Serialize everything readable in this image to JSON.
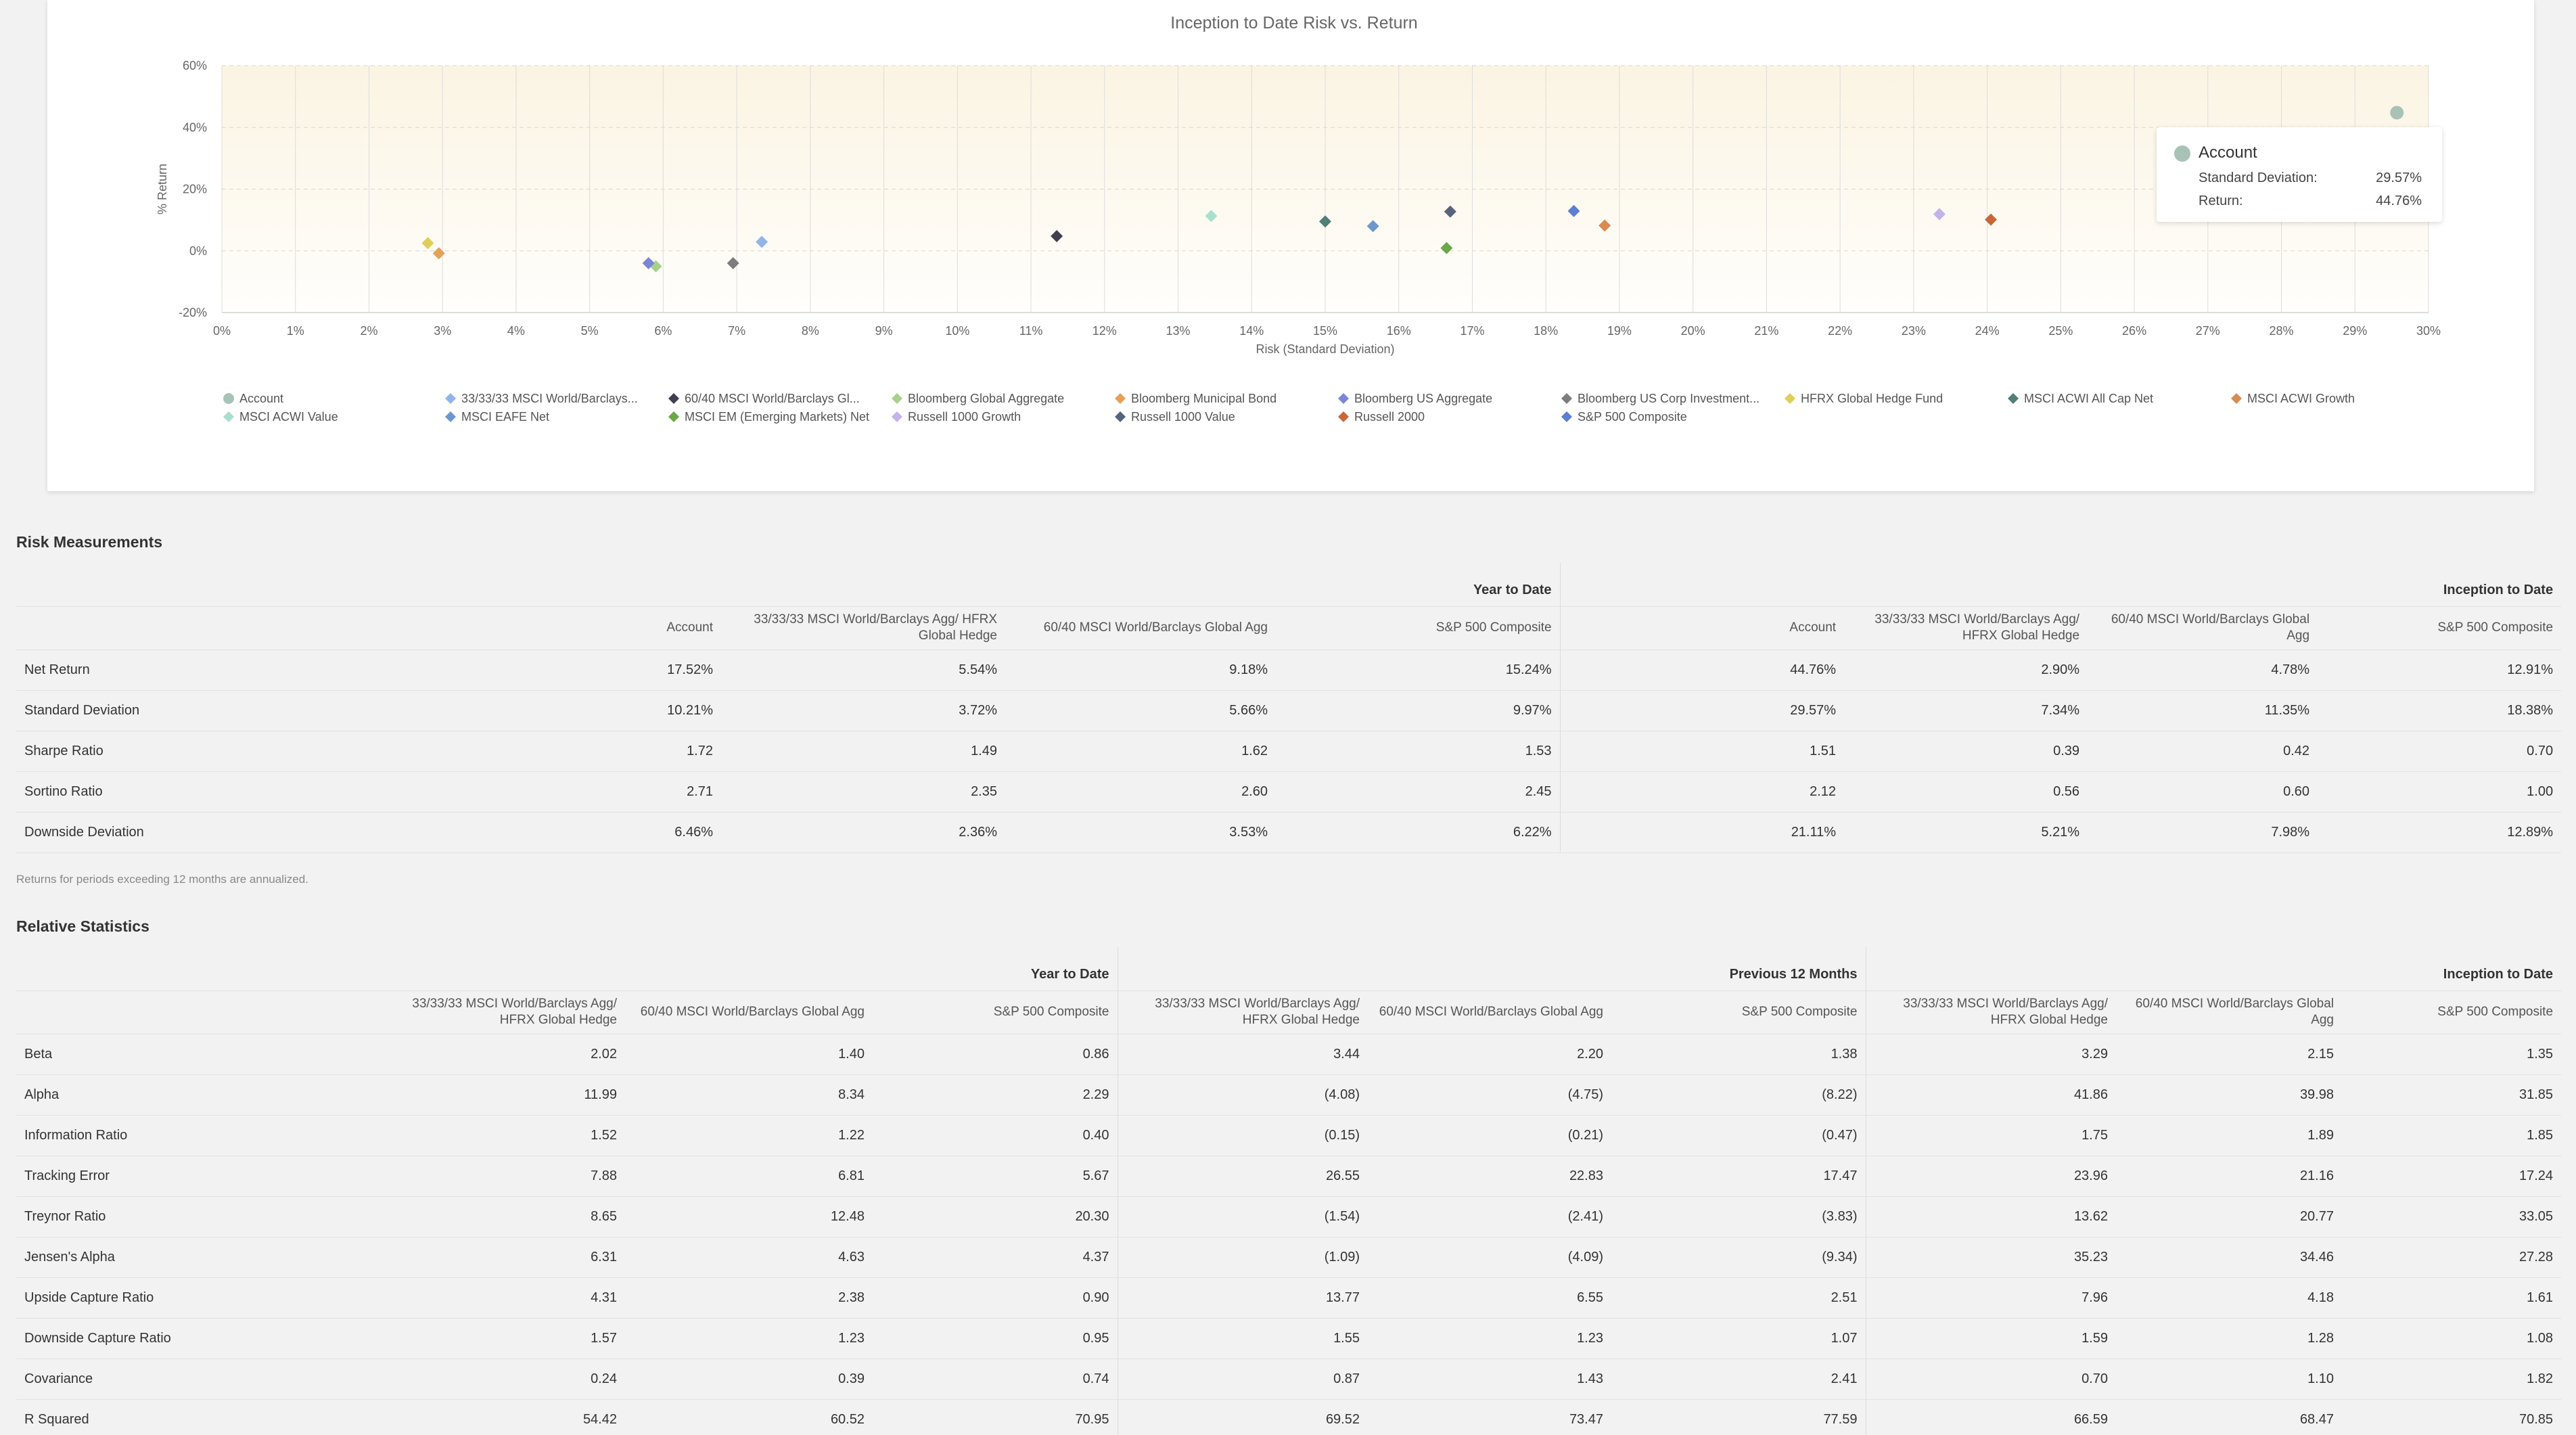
{
  "chart_data": {
    "type": "scatter",
    "title": "Inception to Date Risk vs. Return",
    "xlabel": "Risk (Standard Deviation)",
    "ylabel": "% Return",
    "xlim": [
      0,
      30
    ],
    "ylim": [
      -20,
      60
    ],
    "x_ticks": [
      "0%",
      "1%",
      "2%",
      "3%",
      "4%",
      "5%",
      "6%",
      "7%",
      "8%",
      "9%",
      "10%",
      "11%",
      "12%",
      "13%",
      "14%",
      "15%",
      "16%",
      "17%",
      "18%",
      "19%",
      "20%",
      "21%",
      "22%",
      "23%",
      "24%",
      "25%",
      "26%",
      "27%",
      "28%",
      "29%",
      "30%"
    ],
    "y_ticks": [
      "60%",
      "40%",
      "20%",
      "0%",
      "-20%"
    ],
    "grid": true,
    "legend_position": "bottom",
    "series": [
      {
        "name": "Account",
        "marker": "circle",
        "color": "#a9c2b6",
        "x": 29.57,
        "y": 44.76
      },
      {
        "name": "33/33/33 MSCI World/Barclays...",
        "marker": "diamond",
        "color": "#92b4e8",
        "x": 7.34,
        "y": 2.9
      },
      {
        "name": "60/40 MSCI World/Barclays Gl...",
        "marker": "diamond",
        "color": "#3f3f4f",
        "x": 11.35,
        "y": 4.78
      },
      {
        "name": "Bloomberg Global Aggregate",
        "marker": "diamond",
        "color": "#a8d08d",
        "x": 5.9,
        "y": -5.0
      },
      {
        "name": "Bloomberg Municipal Bond",
        "marker": "diamond",
        "color": "#e3a25a",
        "x": 2.95,
        "y": -0.8
      },
      {
        "name": "Bloomberg US Aggregate",
        "marker": "diamond",
        "color": "#7a86d6",
        "x": 5.8,
        "y": -4.0
      },
      {
        "name": "Bloomberg US Corp Investment...",
        "marker": "diamond",
        "color": "#7c7c7c",
        "x": 6.95,
        "y": -4.0
      },
      {
        "name": "HFRX Global Hedge Fund",
        "marker": "diamond",
        "color": "#e0cf55",
        "x": 2.8,
        "y": 2.5
      },
      {
        "name": "MSCI ACWI All Cap Net",
        "marker": "diamond",
        "color": "#4e7f78",
        "x": 15.0,
        "y": 9.5
      },
      {
        "name": "MSCI ACWI Growth",
        "marker": "diamond",
        "color": "#d98b52",
        "x": 18.8,
        "y": 8.2
      },
      {
        "name": "MSCI ACWI Value",
        "marker": "diamond",
        "color": "#a8e0cc",
        "x": 13.45,
        "y": 11.3
      },
      {
        "name": "MSCI EAFE Net",
        "marker": "diamond",
        "color": "#6f97cf",
        "x": 15.65,
        "y": 8.0
      },
      {
        "name": "MSCI EM (Emerging Markets) Net",
        "marker": "diamond",
        "color": "#6aa847",
        "x": 16.65,
        "y": 0.9
      },
      {
        "name": "Russell 1000 Growth",
        "marker": "diamond",
        "color": "#c3b3e8",
        "x": 23.35,
        "y": 11.9
      },
      {
        "name": "Russell 1000 Value",
        "marker": "diamond",
        "color": "#56637a",
        "x": 16.7,
        "y": 12.7
      },
      {
        "name": "Russell 2000",
        "marker": "diamond",
        "color": "#c8673a",
        "x": 24.05,
        "y": 10.1
      },
      {
        "name": "S&P 500 Composite",
        "marker": "diamond",
        "color": "#5b7fd1",
        "x": 18.38,
        "y": 12.91
      }
    ]
  },
  "tooltip": {
    "name": "Account",
    "std_label": "Standard Deviation:",
    "std_value": "29.57%",
    "ret_label": "Return:",
    "ret_value": "44.76%"
  },
  "risk": {
    "title": "Risk Measurements",
    "groups": [
      "Year to Date",
      "Inception to Date"
    ],
    "columns": [
      "Account",
      "33/33/33 MSCI World/Barclays Agg/ HFRX Global Hedge",
      "60/40 MSCI World/Barclays Global Agg",
      "S&P 500 Composite"
    ],
    "rows": [
      {
        "label": "Net Return",
        "values": [
          "17.52%",
          "5.54%",
          "9.18%",
          "15.24%",
          "44.76%",
          "2.90%",
          "4.78%",
          "12.91%"
        ]
      },
      {
        "label": "Standard Deviation",
        "values": [
          "10.21%",
          "3.72%",
          "5.66%",
          "9.97%",
          "29.57%",
          "7.34%",
          "11.35%",
          "18.38%"
        ]
      },
      {
        "label": "Sharpe Ratio",
        "values": [
          "1.72",
          "1.49",
          "1.62",
          "1.53",
          "1.51",
          "0.39",
          "0.42",
          "0.70"
        ]
      },
      {
        "label": "Sortino Ratio",
        "values": [
          "2.71",
          "2.35",
          "2.60",
          "2.45",
          "2.12",
          "0.56",
          "0.60",
          "1.00"
        ]
      },
      {
        "label": "Downside Deviation",
        "values": [
          "6.46%",
          "2.36%",
          "3.53%",
          "6.22%",
          "21.11%",
          "5.21%",
          "7.98%",
          "12.89%"
        ]
      }
    ],
    "note": "Returns for periods exceeding 12 months are annualized."
  },
  "relative": {
    "title": "Relative Statistics",
    "groups": [
      "Year to Date",
      "Previous 12 Months",
      "Inception to Date"
    ],
    "columns": [
      "33/33/33 MSCI World/Barclays Agg/ HFRX Global Hedge",
      "60/40 MSCI World/Barclays Global Agg",
      "S&P 500 Composite"
    ],
    "rows": [
      {
        "label": "Beta",
        "values": [
          "2.02",
          "1.40",
          "0.86",
          "3.44",
          "2.20",
          "1.38",
          "3.29",
          "2.15",
          "1.35"
        ]
      },
      {
        "label": "Alpha",
        "values": [
          "11.99",
          "8.34",
          "2.29",
          "(4.08)",
          "(4.75)",
          "(8.22)",
          "41.86",
          "39.98",
          "31.85"
        ]
      },
      {
        "label": "Information Ratio",
        "values": [
          "1.52",
          "1.22",
          "0.40",
          "(0.15)",
          "(0.21)",
          "(0.47)",
          "1.75",
          "1.89",
          "1.85"
        ]
      },
      {
        "label": "Tracking Error",
        "values": [
          "7.88",
          "6.81",
          "5.67",
          "26.55",
          "22.83",
          "17.47",
          "23.96",
          "21.16",
          "17.24"
        ]
      },
      {
        "label": "Treynor Ratio",
        "values": [
          "8.65",
          "12.48",
          "20.30",
          "(1.54)",
          "(2.41)",
          "(3.83)",
          "13.62",
          "20.77",
          "33.05"
        ]
      },
      {
        "label": "Jensen's Alpha",
        "values": [
          "6.31",
          "4.63",
          "4.37",
          "(1.09)",
          "(4.09)",
          "(9.34)",
          "35.23",
          "34.46",
          "27.28"
        ]
      },
      {
        "label": "Upside Capture Ratio",
        "values": [
          "4.31",
          "2.38",
          "0.90",
          "13.77",
          "6.55",
          "2.51",
          "7.96",
          "4.18",
          "1.61"
        ]
      },
      {
        "label": "Downside Capture Ratio",
        "values": [
          "1.57",
          "1.23",
          "0.95",
          "1.55",
          "1.23",
          "1.07",
          "1.59",
          "1.28",
          "1.08"
        ]
      },
      {
        "label": "Covariance",
        "values": [
          "0.24",
          "0.39",
          "0.74",
          "0.87",
          "1.43",
          "2.41",
          "0.70",
          "1.10",
          "1.82"
        ]
      },
      {
        "label": "R Squared",
        "values": [
          "54.42",
          "60.52",
          "70.95",
          "69.52",
          "73.47",
          "77.59",
          "66.59",
          "68.47",
          "70.85"
        ]
      }
    ]
  }
}
